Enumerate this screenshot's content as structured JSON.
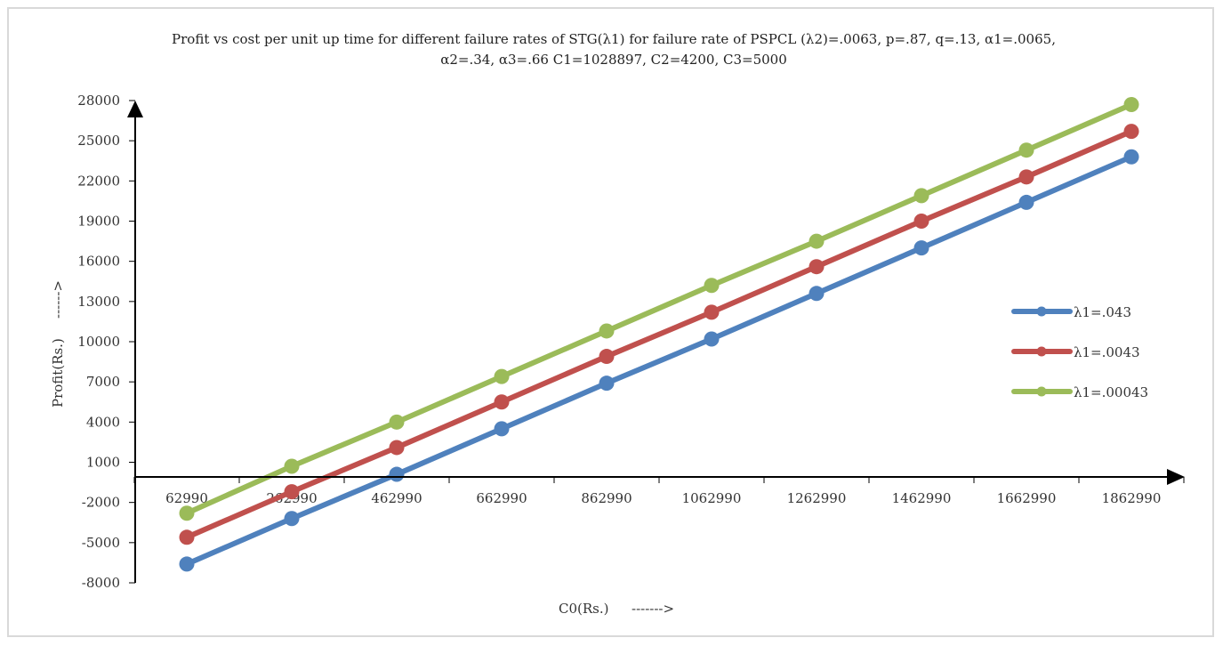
{
  "chart_data": {
    "type": "line",
    "title": "Profit vs cost per unit up time for different failure rates of STG(λ1) for failure rate of PSPCL (λ2)=.0063, p=.87, q=.13, α1=.0065, α2=.34, α3=.66 C1=1028897, C2=4200, C3=5000",
    "title_lines": [
      "Profit vs cost per unit up time for different failure rates of STG(λ1) for failure rate of PSPCL (λ2)=.0063, p=.87, q=.13, α1=.0065,",
      "α2=.34, α3=.66 C1=1028897, C2=4200, C3=5000"
    ],
    "xlabel": "C0(Rs.)",
    "xlabel_arrow": "------->",
    "ylabel": "Profit(Rs.)",
    "ylabel_arrow": "------>",
    "categories": [
      "62990",
      "262990",
      "462990",
      "662990",
      "862990",
      "1062990",
      "1262990",
      "1462990",
      "1662990",
      "1862990"
    ],
    "yticks": [
      -8000,
      -5000,
      -2000,
      1000,
      4000,
      7000,
      10000,
      13000,
      16000,
      19000,
      22000,
      25000,
      28000
    ],
    "ylim": [
      -8000,
      28000
    ],
    "grid": false,
    "legend_position": "right",
    "series": [
      {
        "name": "λ1=.043",
        "color": "#4f81bd",
        "values": [
          -6600,
          -3200,
          100,
          3500,
          6900,
          10200,
          13600,
          17000,
          20400,
          23800
        ]
      },
      {
        "name": "λ1=.0043",
        "color": "#c0504d",
        "values": [
          -4600,
          -1200,
          2100,
          5500,
          8900,
          12200,
          15600,
          19000,
          22300,
          25700
        ]
      },
      {
        "name": "λ1=.00043",
        "color": "#9bbb59",
        "values": [
          -2800,
          700,
          4000,
          7400,
          10800,
          14200,
          17500,
          20900,
          24300,
          27700
        ]
      }
    ]
  }
}
